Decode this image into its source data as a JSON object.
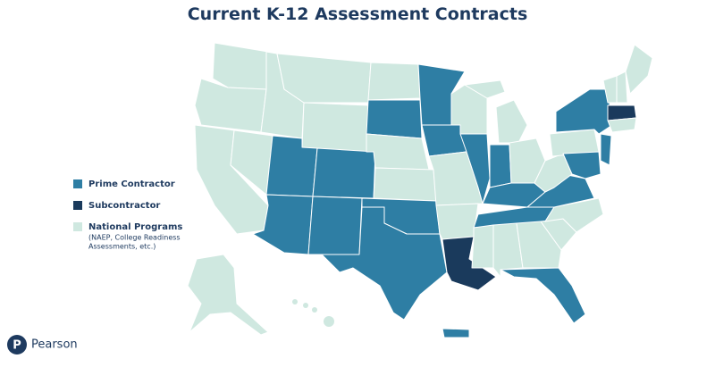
{
  "header": {
    "title": "Current K-12 Assessment Contracts"
  },
  "legend": [
    {
      "label": "Prime Contractor"
    },
    {
      "label": "Subcontractor"
    },
    {
      "label": "National Programs",
      "note": [
        "(NAEP, College Readiness",
        "Assessments, etc.)"
      ]
    }
  ],
  "logo": {
    "text": "Pearson"
  }
}
